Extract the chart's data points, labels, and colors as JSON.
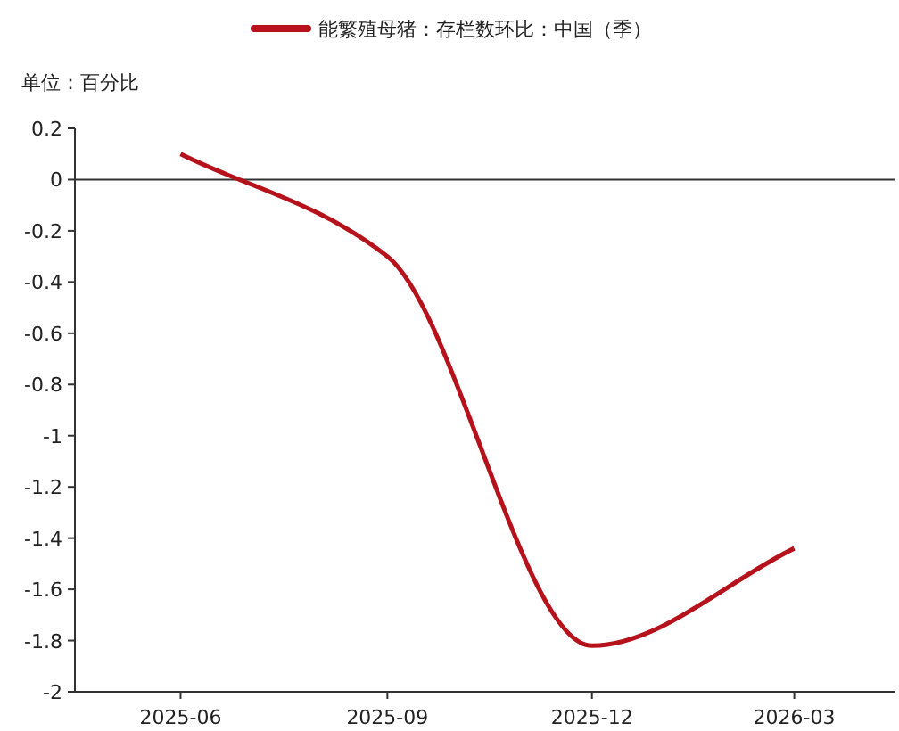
{
  "chart_data": {
    "type": "line",
    "ylabel": "单位：百分比",
    "x": [
      "2025-06",
      "2025-09",
      "2025-12",
      "2026-03"
    ],
    "series": [
      {
        "name": "能繁殖母猪：存栏数环比：中国（季）",
        "color": "#b5121b",
        "values": [
          0.1,
          -0.3,
          -1.82,
          -1.44
        ]
      }
    ],
    "xlim": [
      "2025-04-15",
      "2026-04-15"
    ],
    "xticks": [
      {
        "value": "2025-06",
        "label": "2025-06"
      },
      {
        "value": "2025-09",
        "label": "2025-09"
      },
      {
        "value": "2025-12",
        "label": "2025-12"
      },
      {
        "value": "2026-03",
        "label": "2026-03"
      }
    ],
    "ylim": [
      -2,
      0.2
    ],
    "yticks": [
      0.2,
      0,
      -0.2,
      -0.4,
      -0.6,
      -0.8,
      -1,
      -1.2,
      -1.4,
      -1.6,
      -1.8,
      -2
    ],
    "ref_lines": [
      {
        "axis": "y",
        "value": 0
      }
    ],
    "grid": false,
    "legend": "top",
    "marker": "none",
    "line_style": "solid"
  }
}
